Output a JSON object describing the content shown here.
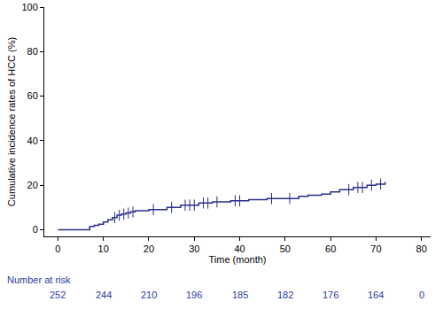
{
  "chart_data": {
    "type": "line",
    "line_style": "step",
    "color": "#2b2e8c",
    "xlabel": "Time (month)",
    "ylabel": "Cumulative incidence rates of HCC (%)",
    "x": [
      0,
      7,
      8,
      9,
      10,
      11,
      12,
      13,
      14,
      15,
      16,
      17,
      20,
      24,
      27,
      31,
      34,
      38,
      42,
      46,
      53,
      55,
      58,
      60,
      62,
      65,
      68,
      70,
      72
    ],
    "values": [
      0,
      1.5,
      2,
      2.5,
      3.5,
      4.5,
      5.5,
      6.5,
      7,
      7.5,
      8,
      8.5,
      9,
      10,
      11,
      12,
      12.5,
      13,
      13.5,
      14,
      15,
      15.5,
      16,
      17,
      18,
      19,
      20,
      20.5,
      21.5
    ],
    "censored": {
      "marker": "line-ns",
      "x": [
        12.5,
        13.5,
        14.5,
        15.5,
        16.5,
        21,
        25,
        28,
        29,
        30,
        32,
        33,
        35,
        39,
        40,
        47,
        51,
        64,
        66,
        67,
        69,
        71
      ],
      "values": [
        5.5,
        6.5,
        7,
        7.5,
        8,
        9,
        10,
        11,
        11,
        11,
        12,
        12,
        12.5,
        13,
        13,
        14,
        14,
        18,
        19,
        19,
        20,
        20.5
      ]
    },
    "xlim": [
      -3,
      82
    ],
    "ylim": [
      -3,
      100
    ],
    "xticks": [
      0,
      10,
      20,
      30,
      40,
      50,
      60,
      70,
      80
    ],
    "yticks": [
      0,
      20,
      40,
      60,
      80,
      100
    ],
    "grid": false,
    "risk_table": {
      "label": "Number at risk",
      "color": "#2b3a9e",
      "x": [
        0,
        10,
        20,
        30,
        40,
        50,
        60,
        70,
        80
      ],
      "values": [
        252,
        244,
        210,
        196,
        185,
        182,
        176,
        164,
        0
      ]
    }
  }
}
